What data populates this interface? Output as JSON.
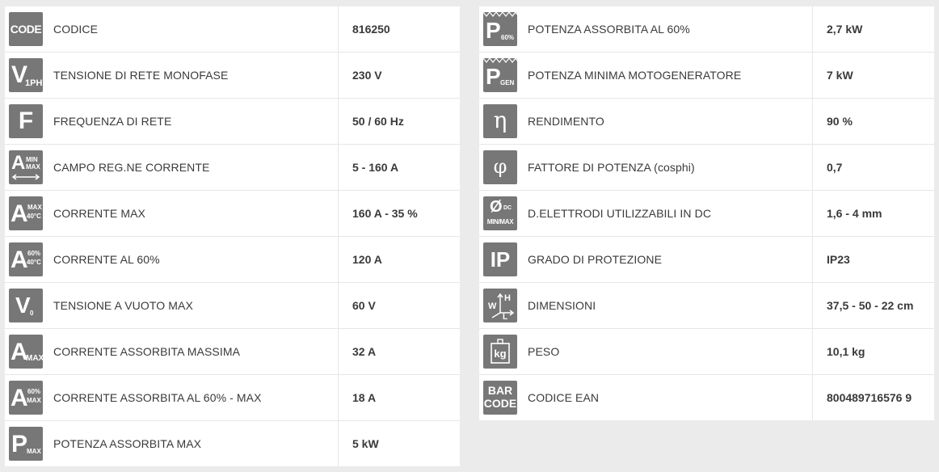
{
  "left": [
    {
      "icon": "code-icon",
      "label": "CODICE",
      "value": "816250"
    },
    {
      "icon": "voltage-single-phase-icon",
      "label": "TENSIONE DI RETE MONOFASE",
      "value": "230 V"
    },
    {
      "icon": "frequency-icon",
      "label": "FREQUENZA DI RETE",
      "value": "50 / 60 Hz"
    },
    {
      "icon": "current-range-icon",
      "label": "CAMPO REG.NE CORRENTE",
      "value": "5 - 160 A"
    },
    {
      "icon": "current-max-40c-icon",
      "label": "CORRENTE MAX",
      "value": "160 A - 35 %"
    },
    {
      "icon": "current-60-40c-icon",
      "label": "CORRENTE AL 60%",
      "value": "120 A"
    },
    {
      "icon": "open-circuit-voltage-icon",
      "label": "TENSIONE A VUOTO MAX",
      "value": "60 V"
    },
    {
      "icon": "absorbed-current-max-icon",
      "label": "CORRENTE ASSORBITA MASSIMA",
      "value": "32 A"
    },
    {
      "icon": "absorbed-current-60-max-icon",
      "label": "CORRENTE ASSORBITA AL 60% - MAX",
      "value": "18 A"
    },
    {
      "icon": "absorbed-power-max-icon",
      "label": "POTENZA ASSORBITA MAX",
      "value": "5 kW"
    }
  ],
  "right": [
    {
      "icon": "absorbed-power-60-icon",
      "label": "POTENZA ASSORBITA AL 60%",
      "value": "2,7 kW"
    },
    {
      "icon": "generator-power-icon",
      "label": "POTENZA MINIMA MOTOGENERATORE",
      "value": "7 kW"
    },
    {
      "icon": "efficiency-eta-icon",
      "label": "RENDIMENTO",
      "value": "90 %"
    },
    {
      "icon": "power-factor-phi-icon",
      "label": "FATTORE DI POTENZA (cosphi)",
      "value": "0,7"
    },
    {
      "icon": "electrode-diameter-icon",
      "label": "D.ELETTRODI UTILIZZABILI IN DC",
      "value": "1,6 - 4 mm"
    },
    {
      "icon": "ip-protection-icon",
      "label": "GRADO DI PROTEZIONE",
      "value": "IP23"
    },
    {
      "icon": "dimensions-icon",
      "label": "DIMENSIONI",
      "value": "37,5 - 50 - 22 cm"
    },
    {
      "icon": "weight-icon",
      "label": "PESO",
      "value": "10,1 kg"
    },
    {
      "icon": "barcode-icon",
      "label": "CODICE EAN",
      "value": "800489716576 9"
    }
  ],
  "icons": {
    "code": "CODE",
    "v1ph_main": "V",
    "v1ph_sub": "1PH",
    "freq": "F",
    "amin_main": "A",
    "amin_sub1": "MIN",
    "amin_sub2": "MAX",
    "amax40_main": "A",
    "amax40_sub1": "MAX",
    "amax40_sub2": "40°C",
    "a6040_main": "A",
    "a6040_sub1": "60%",
    "a6040_sub2": "40°C",
    "v0_main": "V",
    "v0_sub": "0",
    "aamax_main": "A",
    "aamax_sub": "MAX",
    "a60max_main": "A",
    "a60max_sub1": "60%",
    "a60max_sub2": "MAX",
    "pmax_main": "P",
    "pmax_sub": "MAX",
    "p60_main": "P",
    "p60_sub": "60%",
    "pgen_main": "P",
    "pgen_sub": "GEN",
    "eta": "η",
    "phi": "φ",
    "odc_main": "Ø",
    "odc_sub1": "DC",
    "odc_sub2": "MIN/MAX",
    "ip": "IP",
    "dim_h": "H",
    "dim_w": "W",
    "dim_l": "L",
    "kg": "kg",
    "bar1": "BAR",
    "bar2": "CODE"
  },
  "colors": {
    "icon_bg": "#777777",
    "text": "#3a3a3a",
    "page_bg": "#ebebeb"
  }
}
